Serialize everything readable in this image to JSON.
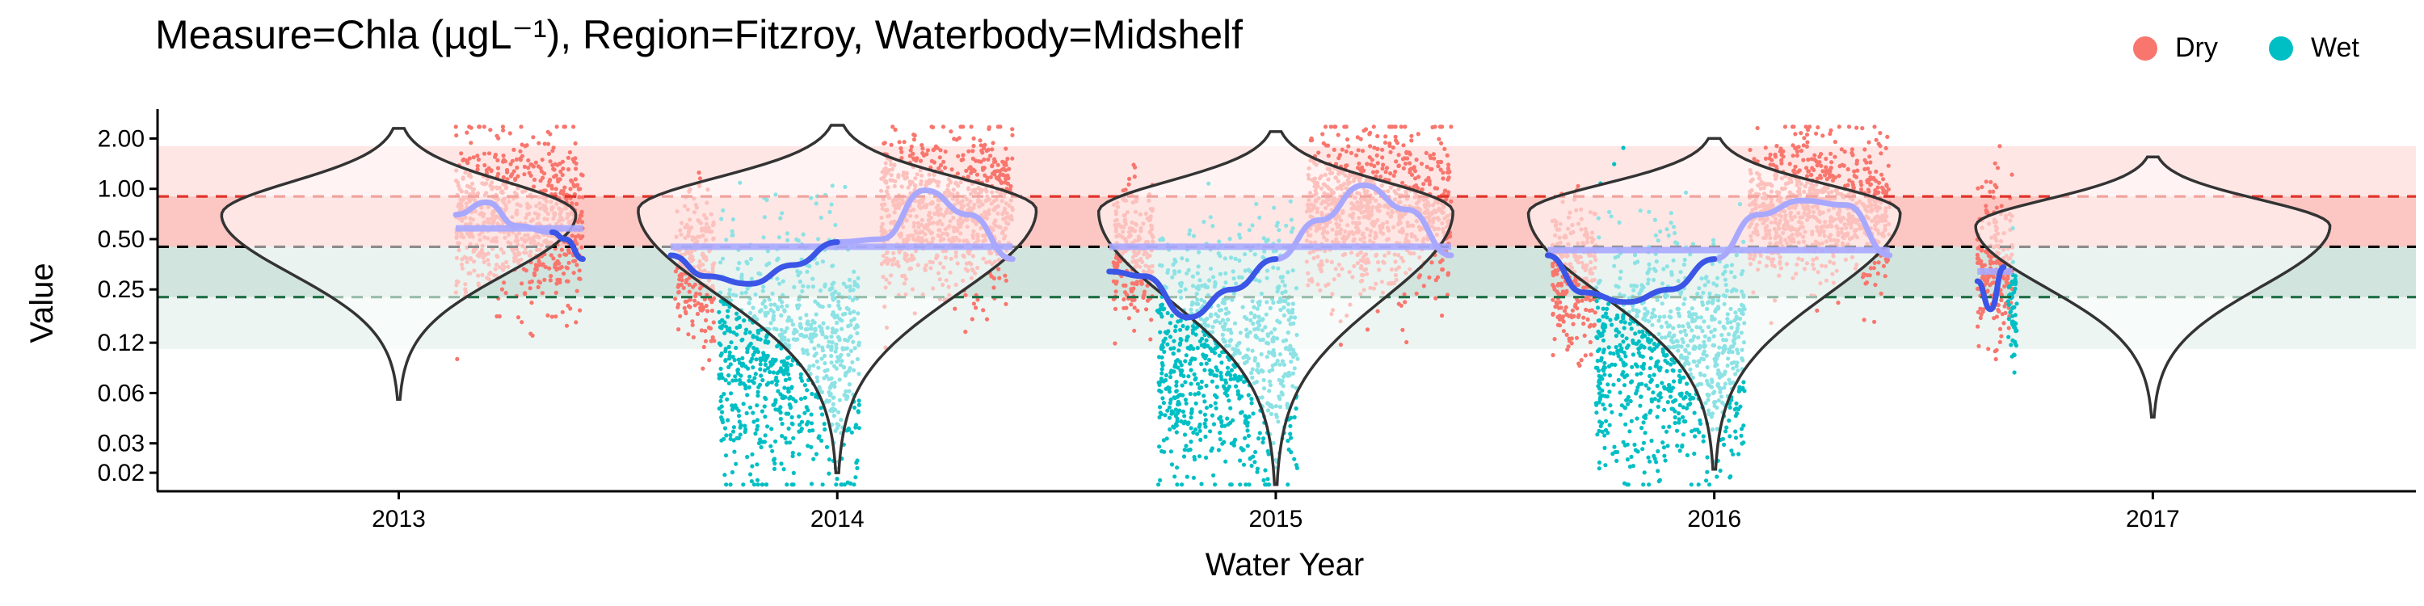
{
  "chart_data": {
    "type": "scatter",
    "title": "Measure=Chla (µgL⁻¹), Region=Fitzroy, Waterbody=Midshelf",
    "xlabel": "Water Year",
    "ylabel": "Value",
    "x_scale": "year",
    "y_scale": "log",
    "xlim": [
      2012.45,
      2017.6
    ],
    "ylim": [
      0.0155,
      3.0
    ],
    "x_ticks": [
      {
        "value": 2013,
        "label": "2013"
      },
      {
        "value": 2014,
        "label": "2014"
      },
      {
        "value": 2015,
        "label": "2015"
      },
      {
        "value": 2016,
        "label": "2016"
      },
      {
        "value": 2017,
        "label": "2017"
      }
    ],
    "y_ticks": [
      {
        "value": 2.0,
        "label": "2.00"
      },
      {
        "value": 1.0,
        "label": "1.00"
      },
      {
        "value": 0.5,
        "label": "0.50"
      },
      {
        "value": 0.25,
        "label": "0.25"
      },
      {
        "value": 0.12,
        "label": "0.12"
      },
      {
        "value": 0.06,
        "label": "0.06"
      },
      {
        "value": 0.03,
        "label": "0.03"
      },
      {
        "value": 0.02,
        "label": "0.02"
      }
    ],
    "grid": false,
    "legend": {
      "placement": "top-right",
      "entries": [
        {
          "name": "Dry",
          "color": "#F8766D"
        },
        {
          "name": "Wet",
          "color": "#00BFC4"
        }
      ]
    },
    "bands": [
      {
        "ymin": 0.45,
        "ymax": 1.8,
        "color": "#F8766D",
        "opacity": 0.18
      },
      {
        "ymin": 0.45,
        "ymax": 0.9,
        "color": "#F8766D",
        "opacity": 0.28
      },
      {
        "ymin": 0.225,
        "ymax": 0.45,
        "color": "#1B7A55",
        "opacity": 0.2
      },
      {
        "ymin": 0.11,
        "ymax": 0.225,
        "color": "#1B7A55",
        "opacity": 0.08
      }
    ],
    "reference_lines": [
      {
        "y": 0.9,
        "color": "#E0342A"
      },
      {
        "y": 0.45,
        "color": "#000000"
      },
      {
        "y": 0.225,
        "color": "#1E6E46"
      }
    ],
    "series": [
      {
        "name": "Dry",
        "color": "#F8766D",
        "segments": [
          {
            "x0": 2013.13,
            "x1": 2013.42,
            "median": 0.65,
            "spread": 0.55
          },
          {
            "x0": 2013.63,
            "x1": 2013.72,
            "median": 0.35,
            "spread": 0.5
          },
          {
            "x0": 2014.1,
            "x1": 2014.4,
            "median": 0.7,
            "spread": 0.55
          },
          {
            "x0": 2014.63,
            "x1": 2014.72,
            "median": 0.4,
            "spread": 0.5
          },
          {
            "x0": 2015.07,
            "x1": 2015.4,
            "median": 0.75,
            "spread": 0.55
          },
          {
            "x0": 2015.63,
            "x1": 2015.73,
            "median": 0.3,
            "spread": 0.5
          },
          {
            "x0": 2016.08,
            "x1": 2016.4,
            "median": 0.75,
            "spread": 0.5
          },
          {
            "x0": 2016.6,
            "x1": 2016.68,
            "median": 0.35,
            "spread": 0.55
          }
        ]
      },
      {
        "name": "Wet",
        "color": "#00BFC4",
        "segments": [
          {
            "x0": 2013.73,
            "x1": 2014.05,
            "median": 0.1,
            "spread": 0.85
          },
          {
            "x0": 2014.73,
            "x1": 2015.05,
            "median": 0.1,
            "spread": 0.85
          },
          {
            "x0": 2015.73,
            "x1": 2016.07,
            "median": 0.1,
            "spread": 0.8
          },
          {
            "x0": 2016.67,
            "x1": 2016.69,
            "median": 0.2,
            "spread": 0.45
          }
        ]
      }
    ],
    "violins": [
      {
        "x": 2013,
        "median": 0.62,
        "peak": 0.7,
        "ymin": 0.055,
        "ymax": 2.3,
        "halfwidth": 0.4
      },
      {
        "x": 2014,
        "median": 0.72,
        "peak": 0.75,
        "ymin": 0.02,
        "ymax": 2.4,
        "halfwidth": 0.45
      },
      {
        "x": 2015,
        "median": 0.55,
        "peak": 0.73,
        "ymin": 0.017,
        "ymax": 2.2,
        "halfwidth": 0.4
      },
      {
        "x": 2016,
        "median": 0.6,
        "peak": 0.72,
        "ymin": 0.021,
        "ymax": 2.0,
        "halfwidth": 0.42
      },
      {
        "x": 2017,
        "median": 0.45,
        "peak": 0.6,
        "ymin": 0.043,
        "ymax": 1.55,
        "halfwidth": 0.4
      }
    ],
    "trend_lines": {
      "dark_color": "#3B55E6",
      "light_color": "#A9A8FF",
      "dark": [
        [
          [
            2013.35,
            0.55
          ],
          [
            2013.38,
            0.5
          ],
          [
            2013.42,
            0.38
          ]
        ],
        [
          [
            2013.62,
            0.4
          ],
          [
            2013.7,
            0.3
          ],
          [
            2013.8,
            0.27
          ],
          [
            2013.9,
            0.35
          ],
          [
            2014.0,
            0.48
          ]
        ],
        [
          [
            2014.62,
            0.32
          ],
          [
            2014.7,
            0.3
          ],
          [
            2014.8,
            0.17
          ],
          [
            2014.9,
            0.25
          ],
          [
            2015.0,
            0.38
          ]
        ],
        [
          [
            2015.62,
            0.4
          ],
          [
            2015.7,
            0.24
          ],
          [
            2015.8,
            0.21
          ],
          [
            2015.9,
            0.25
          ],
          [
            2016.0,
            0.38
          ]
        ],
        [
          [
            2016.6,
            0.28
          ],
          [
            2016.63,
            0.19
          ],
          [
            2016.66,
            0.34
          ]
        ]
      ],
      "light": [
        [
          [
            2013.13,
            0.7
          ],
          [
            2013.2,
            0.83
          ],
          [
            2013.27,
            0.6
          ],
          [
            2013.35,
            0.55
          ]
        ],
        [
          [
            2014.0,
            0.48
          ],
          [
            2014.1,
            0.5
          ],
          [
            2014.2,
            0.98
          ],
          [
            2014.3,
            0.7
          ],
          [
            2014.4,
            0.38
          ]
        ],
        [
          [
            2015.0,
            0.38
          ],
          [
            2015.1,
            0.65
          ],
          [
            2015.2,
            1.05
          ],
          [
            2015.3,
            0.75
          ],
          [
            2015.4,
            0.4
          ]
        ],
        [
          [
            2016.0,
            0.38
          ],
          [
            2016.1,
            0.7
          ],
          [
            2016.2,
            0.85
          ],
          [
            2016.3,
            0.8
          ],
          [
            2016.4,
            0.4
          ]
        ]
      ],
      "medians": [
        {
          "x0": 2013.13,
          "x1": 2013.42,
          "y": 0.58
        },
        {
          "x0": 2013.62,
          "x1": 2014.4,
          "y": 0.45
        },
        {
          "x0": 2014.62,
          "x1": 2015.4,
          "y": 0.45
        },
        {
          "x0": 2015.62,
          "x1": 2016.4,
          "y": 0.43
        },
        {
          "x0": 2016.6,
          "x1": 2016.68,
          "y": 0.32
        }
      ]
    }
  }
}
